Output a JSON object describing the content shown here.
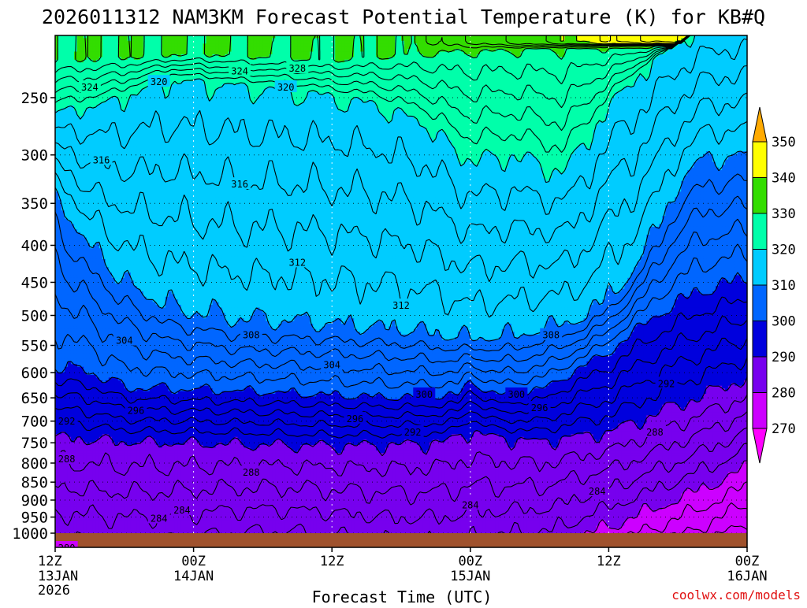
{
  "chart_data": {
    "type": "heatmap",
    "title": "2026011312 NAM3KM Forecast Potential Temperature (K) for KB#Q",
    "xlabel": "Forecast Time (UTC)",
    "ylabel": "",
    "credit": "coolwx.com/models",
    "x_ticks": [
      {
        "label": "12Z",
        "sub": [
          "13JAN",
          "2026"
        ],
        "hours": 0
      },
      {
        "label": "00Z",
        "sub": [
          "14JAN"
        ],
        "hours": 12
      },
      {
        "label": "12Z",
        "sub": [],
        "hours": 24
      },
      {
        "label": "00Z",
        "sub": [
          "15JAN"
        ],
        "hours": 36
      },
      {
        "label": "12Z",
        "sub": [],
        "hours": 48
      },
      {
        "label": "00Z",
        "sub": [
          "16JAN"
        ],
        "hours": 60
      }
    ],
    "xlim_hours": [
      0,
      60
    ],
    "y_axis": {
      "scale": "pressure (log)",
      "range_hPa": [
        1012,
        210
      ],
      "ticks": [
        250,
        300,
        350,
        400,
        450,
        500,
        550,
        600,
        650,
        700,
        750,
        800,
        850,
        900,
        950,
        1000
      ]
    },
    "grid": true,
    "colorbar": {
      "position": "right",
      "levels": [
        270,
        280,
        290,
        300,
        310,
        320,
        330,
        340,
        350
      ],
      "colors": [
        "#ff00ff",
        "#cc00ff",
        "#7700ee",
        "#0000dd",
        "#0066ff",
        "#00ccff",
        "#00ffaa",
        "#33dd00",
        "#ffff00",
        "#ffaa00"
      ],
      "extend": "both"
    },
    "contour_interval": 2,
    "contour_labels": [
      "324",
      "328",
      "324",
      "320",
      "316",
      "320",
      "316",
      "312",
      "312",
      "308",
      "308",
      "304",
      "304",
      "300",
      "300",
      "296",
      "296",
      "296",
      "292",
      "292",
      "292",
      "288",
      "288",
      "284",
      "280",
      "288",
      "284",
      "284",
      "284"
    ],
    "isotherms": [
      {
        "value": 290,
        "points": [
          [
            0,
            735
          ],
          [
            6,
            745
          ],
          [
            12,
            748
          ],
          [
            18,
            752
          ],
          [
            24,
            755
          ],
          [
            30,
            752
          ],
          [
            34,
            745
          ],
          [
            36,
            718
          ],
          [
            38,
            735
          ],
          [
            42,
            745
          ],
          [
            48,
            725
          ],
          [
            54,
            665
          ],
          [
            60,
            610
          ]
        ]
      },
      {
        "value": 300,
        "points": [
          [
            0,
            588
          ],
          [
            3,
            600
          ],
          [
            6,
            630
          ],
          [
            10,
            632
          ],
          [
            18,
            638
          ],
          [
            24,
            645
          ],
          [
            30,
            650
          ],
          [
            35,
            645
          ],
          [
            36,
            615
          ],
          [
            38,
            645
          ],
          [
            42,
            635
          ],
          [
            48,
            560
          ],
          [
            52,
            500
          ],
          [
            56,
            462
          ],
          [
            60,
            445
          ]
        ]
      },
      {
        "value": 310,
        "points": [
          [
            0,
            340
          ],
          [
            3,
            400
          ],
          [
            6,
            450
          ],
          [
            10,
            490
          ],
          [
            16,
            510
          ],
          [
            22,
            515
          ],
          [
            30,
            525
          ],
          [
            36,
            540
          ],
          [
            40,
            535
          ],
          [
            46,
            505
          ],
          [
            50,
            440
          ],
          [
            54,
            330
          ],
          [
            56,
            305
          ],
          [
            60,
            300
          ]
        ]
      },
      {
        "value": 320,
        "points": [
          [
            0,
            262
          ],
          [
            4,
            255
          ],
          [
            10,
            235
          ],
          [
            16,
            240
          ],
          [
            22,
            245
          ],
          [
            28,
            255
          ],
          [
            32,
            270
          ],
          [
            36,
            305
          ],
          [
            40,
            300
          ],
          [
            44,
            318
          ],
          [
            48,
            255
          ],
          [
            52,
            220
          ],
          [
            56,
            200
          ],
          [
            60,
            195
          ]
        ]
      },
      {
        "value": 330,
        "points": [
          [
            0,
            222
          ],
          [
            6,
            220
          ],
          [
            12,
            218
          ],
          [
            18,
            220
          ],
          [
            24,
            222
          ],
          [
            30,
            218
          ],
          [
            36,
            215
          ],
          [
            42,
            214
          ],
          [
            48,
            213
          ],
          [
            54,
            212
          ],
          [
            60,
            211
          ]
        ]
      }
    ],
    "ground_below_hPa": 1000,
    "ground_color": "#a0522d"
  }
}
